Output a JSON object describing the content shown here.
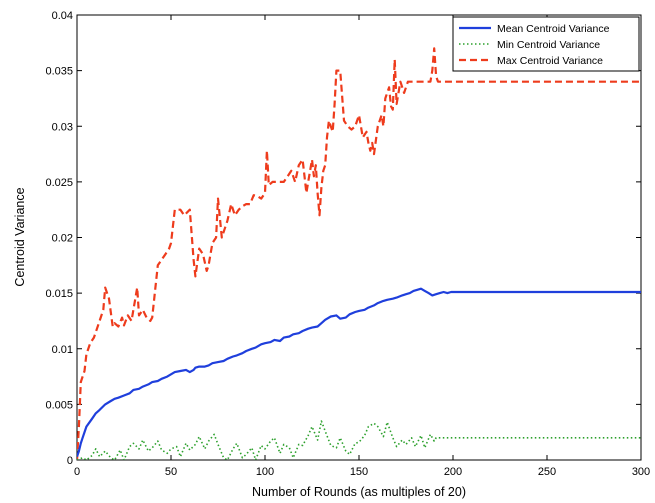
{
  "chart_data": {
    "type": "line",
    "title": "",
    "xlabel": "Number of Rounds (as multiples of 20)",
    "ylabel": "Centroid Variance",
    "xlim": [
      0,
      300
    ],
    "ylim": [
      0,
      0.04
    ],
    "xticks": [
      0,
      50,
      100,
      150,
      200,
      250,
      300
    ],
    "xtick_labels": [
      "0",
      "50",
      "100",
      "150",
      "200",
      "250",
      "300"
    ],
    "yticks": [
      0,
      0.005,
      0.01,
      0.015,
      0.02,
      0.025,
      0.03,
      0.035,
      0.04
    ],
    "ytick_labels": [
      "0",
      "0.005",
      "0.01",
      "0.015",
      "0.02",
      "0.025",
      "0.03",
      "0.035",
      "0.04"
    ],
    "grid": false,
    "legend_position": "top-right",
    "series": [
      {
        "name": "Mean Centroid Variance",
        "color": "#1f3fdc",
        "style": "solid",
        "x": [
          0,
          1,
          2,
          3,
          5,
          8,
          10,
          12,
          15,
          18,
          20,
          22,
          25,
          28,
          30,
          33,
          35,
          38,
          40,
          43,
          45,
          48,
          50,
          52,
          55,
          58,
          60,
          62,
          63,
          65,
          68,
          70,
          72,
          75,
          78,
          80,
          83,
          85,
          88,
          90,
          93,
          95,
          98,
          100,
          103,
          105,
          108,
          110,
          113,
          115,
          118,
          120,
          123,
          125,
          128,
          130,
          132,
          135,
          138,
          140,
          143,
          145,
          148,
          150,
          153,
          155,
          158,
          160,
          163,
          165,
          168,
          170,
          173,
          175,
          177,
          179,
          181,
          183,
          185,
          187,
          189,
          191,
          193,
          195,
          197,
          199,
          200,
          300
        ],
        "y": [
          0.0003,
          0.0008,
          0.0015,
          0.002,
          0.003,
          0.0037,
          0.0042,
          0.0045,
          0.005,
          0.0053,
          0.0055,
          0.0056,
          0.0058,
          0.006,
          0.0063,
          0.0064,
          0.0066,
          0.0068,
          0.007,
          0.0071,
          0.0073,
          0.0075,
          0.0077,
          0.0079,
          0.008,
          0.0081,
          0.0079,
          0.0081,
          0.0083,
          0.0084,
          0.0084,
          0.0085,
          0.0087,
          0.0088,
          0.0089,
          0.0091,
          0.0093,
          0.0094,
          0.0096,
          0.0098,
          0.01,
          0.0101,
          0.0104,
          0.0105,
          0.0106,
          0.0108,
          0.0107,
          0.011,
          0.0111,
          0.0113,
          0.0114,
          0.0116,
          0.0118,
          0.0119,
          0.012,
          0.0123,
          0.0126,
          0.0129,
          0.013,
          0.0127,
          0.0128,
          0.0131,
          0.0133,
          0.0134,
          0.0135,
          0.0137,
          0.0139,
          0.0141,
          0.0143,
          0.0144,
          0.0145,
          0.0146,
          0.0148,
          0.0149,
          0.015,
          0.0152,
          0.0153,
          0.0154,
          0.0152,
          0.015,
          0.0148,
          0.0149,
          0.015,
          0.0151,
          0.015,
          0.0151,
          0.0151,
          0.0151
        ]
      },
      {
        "name": "Min Centroid Variance",
        "color": "#2ca02c",
        "style": "dotted",
        "x": [
          0,
          3,
          5,
          8,
          10,
          12,
          15,
          18,
          20,
          23,
          25,
          28,
          30,
          33,
          35,
          38,
          40,
          43,
          45,
          48,
          50,
          53,
          55,
          58,
          60,
          63,
          65,
          68,
          70,
          73,
          75,
          78,
          80,
          83,
          85,
          88,
          90,
          93,
          95,
          98,
          100,
          103,
          105,
          108,
          110,
          113,
          115,
          118,
          120,
          123,
          125,
          128,
          130,
          132,
          135,
          138,
          140,
          143,
          145,
          148,
          150,
          153,
          155,
          158,
          160,
          163,
          165,
          168,
          170,
          173,
          175,
          178,
          180,
          183,
          185,
          188,
          190,
          191,
          300
        ],
        "y": [
          0.0,
          0.0002,
          0.0,
          0.0004,
          0.001,
          0.0003,
          0.0008,
          0.0002,
          0.0,
          0.0009,
          0.0,
          0.0012,
          0.0015,
          0.001,
          0.0018,
          0.0008,
          0.0011,
          0.0017,
          0.0009,
          0.0006,
          0.001,
          0.0012,
          0.0003,
          0.0015,
          0.0009,
          0.0014,
          0.0021,
          0.001,
          0.0017,
          0.0023,
          0.0014,
          0.0002,
          0.0,
          0.001,
          0.0015,
          0.0002,
          0.0005,
          0.0011,
          0.0,
          0.0013,
          0.001,
          0.0017,
          0.002,
          0.0006,
          0.0014,
          0.0011,
          0.0002,
          0.0014,
          0.0013,
          0.0022,
          0.003,
          0.0018,
          0.0035,
          0.0026,
          0.0013,
          0.0011,
          0.002,
          0.0008,
          0.0005,
          0.0015,
          0.0016,
          0.0022,
          0.003,
          0.0033,
          0.003,
          0.0021,
          0.0034,
          0.002,
          0.0012,
          0.0018,
          0.0014,
          0.002,
          0.0012,
          0.0022,
          0.0011,
          0.0023,
          0.0017,
          0.002,
          0.002
        ]
      },
      {
        "name": "Max Centroid Variance",
        "color": "#ee3b1c",
        "style": "dashed",
        "x": [
          0,
          1,
          2,
          3,
          4,
          5,
          7,
          9,
          10,
          12,
          14,
          15,
          17,
          19,
          20,
          22,
          24,
          25,
          27,
          29,
          30,
          32,
          33,
          35,
          37,
          39,
          40,
          42,
          43,
          45,
          47,
          49,
          50,
          52,
          55,
          57,
          60,
          62,
          63,
          65,
          67,
          69,
          70,
          72,
          74,
          75,
          77,
          79,
          80,
          82,
          84,
          86,
          88,
          90,
          92,
          94,
          96,
          98,
          100,
          101,
          102,
          104,
          106,
          108,
          110,
          112,
          114,
          116,
          118,
          120,
          121,
          122,
          123,
          124,
          125,
          126,
          127,
          128,
          129,
          130,
          131,
          132,
          133,
          134,
          135,
          136,
          137,
          138,
          140,
          142,
          144,
          146,
          148,
          150,
          152,
          154,
          155,
          156,
          157,
          158,
          160,
          162,
          163,
          164,
          165,
          166,
          167,
          168,
          169,
          170,
          172,
          174,
          176,
          178,
          180,
          182,
          184,
          186,
          188,
          189,
          190,
          191,
          192,
          195,
          200,
          300
        ],
        "y": [
          0.0,
          0.003,
          0.007,
          0.0075,
          0.008,
          0.0095,
          0.0105,
          0.011,
          0.0115,
          0.0125,
          0.0135,
          0.0155,
          0.0145,
          0.012,
          0.0123,
          0.012,
          0.0128,
          0.0121,
          0.013,
          0.0125,
          0.0135,
          0.0155,
          0.013,
          0.0135,
          0.0128,
          0.0125,
          0.0128,
          0.016,
          0.0175,
          0.018,
          0.0185,
          0.019,
          0.0195,
          0.0225,
          0.0225,
          0.022,
          0.0225,
          0.018,
          0.0165,
          0.019,
          0.0185,
          0.017,
          0.0175,
          0.0195,
          0.02,
          0.0235,
          0.02,
          0.021,
          0.0215,
          0.023,
          0.022,
          0.0225,
          0.0228,
          0.023,
          0.023,
          0.0238,
          0.0237,
          0.0235,
          0.024,
          0.0278,
          0.0247,
          0.025,
          0.025,
          0.025,
          0.025,
          0.0255,
          0.026,
          0.025,
          0.0265,
          0.027,
          0.0255,
          0.024,
          0.025,
          0.026,
          0.027,
          0.0255,
          0.0265,
          0.024,
          0.022,
          0.0245,
          0.026,
          0.0265,
          0.029,
          0.0305,
          0.03,
          0.0295,
          0.032,
          0.035,
          0.035,
          0.0305,
          0.03,
          0.0297,
          0.03,
          0.031,
          0.029,
          0.0295,
          0.0285,
          0.0278,
          0.0285,
          0.0275,
          0.03,
          0.031,
          0.03,
          0.0325,
          0.033,
          0.0335,
          0.0318,
          0.0315,
          0.036,
          0.032,
          0.034,
          0.033,
          0.034,
          0.034,
          0.034,
          0.034,
          0.034,
          0.034,
          0.034,
          0.035,
          0.037,
          0.0345,
          0.034,
          0.034,
          0.034,
          0.034
        ]
      }
    ]
  }
}
